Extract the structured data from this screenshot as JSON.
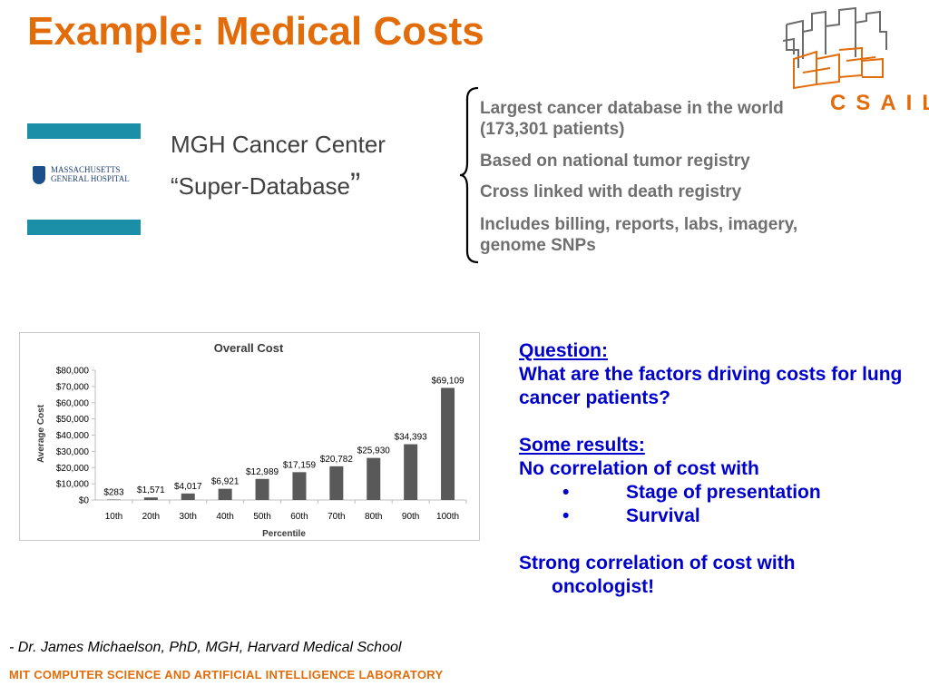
{
  "slide": {
    "title": "Example: Medical Costs",
    "database": {
      "line1": "MGH Cancer Center",
      "line2": "“Super-Database",
      "line2_close": "”"
    },
    "mgh_logo_text": "MASSACHUSETTS\nGENERAL HOSPITAL",
    "features": [
      "Largest cancer database in the world (173,301 patients)",
      "Based on national tumor registry",
      "Cross linked with death registry",
      "Includes billing, reports, labs, imagery, genome SNPs"
    ],
    "csail_logo_text": "CSAIL",
    "qa": {
      "question_heading": "Question:",
      "question_text": "What are the factors driving costs for lung cancer patients?",
      "results_heading": "Some results:",
      "no_corr": "No correlation of cost with",
      "bullet_char": "•",
      "bullets": [
        "Stage of presentation",
        "Survival"
      ],
      "strong_corr_1": "Strong correlation of cost with",
      "strong_corr_2": "oncologist!"
    },
    "quote": "- Dr. James Michaelson, PhD, MGH, Harvard Medical School",
    "footer": "MIT COMPUTER SCIENCE AND ARTIFICIAL INTELLIGENCE LABORATORY"
  },
  "colors": {
    "title": "#e36c0a",
    "teal": "#1b8fa8",
    "features": "#6f6f6f",
    "qa": "#0000cc",
    "bar": "#595959"
  },
  "chart_data": {
    "type": "bar",
    "title": "Overall Cost",
    "xlabel": "Percentile",
    "ylabel": "Average Cost",
    "categories": [
      "10th",
      "20th",
      "30th",
      "40th",
      "50th",
      "60th",
      "70th",
      "80th",
      "90th",
      "100th"
    ],
    "values": [
      283,
      1571,
      4017,
      6921,
      12989,
      17159,
      20782,
      25930,
      34393,
      69109
    ],
    "value_labels": [
      "$283",
      "$1,571",
      "$4,017",
      "$6,921",
      "$12,989",
      "$17,159",
      "$20,782",
      "$25,930",
      "$34,393",
      "$69,109"
    ],
    "yticks": [
      0,
      10000,
      20000,
      30000,
      40000,
      50000,
      60000,
      70000,
      80000
    ],
    "ytick_labels": [
      "$0",
      "$10,000",
      "$20,000",
      "$30,000",
      "$40,000",
      "$50,000",
      "$60,000",
      "$70,000",
      "$80,000"
    ],
    "ylim": [
      0,
      80000
    ],
    "grid": false,
    "legend": "none"
  }
}
